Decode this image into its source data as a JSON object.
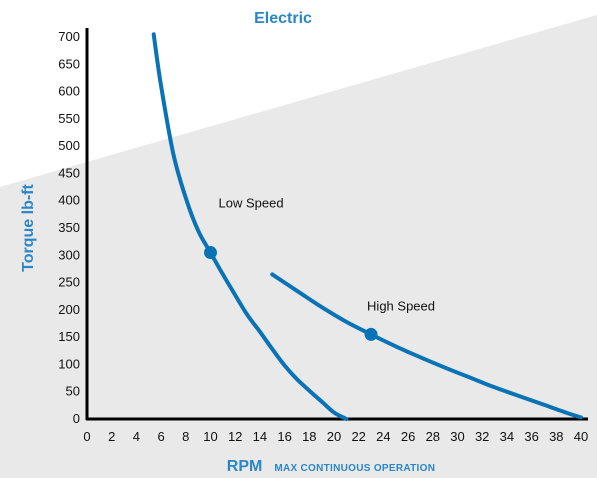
{
  "chart_data": {
    "type": "line",
    "title": "Electric",
    "xlabel": "RPM",
    "xlabel_note": "MAX CONTINUOUS OPERATION",
    "ylabel": "Torque lb-ft",
    "xlim": [
      0,
      40
    ],
    "ylim": [
      0,
      700
    ],
    "x_ticks": [
      "0",
      "2",
      "4",
      "6",
      "8",
      "10",
      "12",
      "14",
      "16",
      "18",
      "20",
      "22",
      "24",
      "26",
      "28",
      "30",
      "32",
      "34",
      "36",
      "38",
      "40"
    ],
    "y_ticks": [
      "0",
      "50",
      "100",
      "150",
      "200",
      "250",
      "300",
      "350",
      "400",
      "450",
      "500",
      "550",
      "600",
      "650",
      "700"
    ],
    "grid": false,
    "series": [
      {
        "name": "Low Speed",
        "x": [
          5.4,
          6.0,
          7.0,
          8.0,
          9.0,
          10.0,
          11.0,
          12.0,
          13.0,
          14.0,
          15.0,
          16.0,
          17.0,
          18.0,
          19.0,
          20.0,
          21.0
        ],
        "values": [
          705,
          610,
          485,
          405,
          345,
          305,
          265,
          227,
          190,
          160,
          128,
          98,
          73,
          52,
          32,
          12,
          0
        ],
        "marker": {
          "x": 10.0,
          "y": 305
        }
      },
      {
        "name": "High Speed",
        "x": [
          15.0,
          17.0,
          19.0,
          21.0,
          23.0,
          25.0,
          27.0,
          29.0,
          31.0,
          33.0,
          35.0,
          37.0,
          39.0,
          40.0
        ],
        "values": [
          265,
          235,
          205,
          178,
          155,
          133,
          113,
          94,
          76,
          58,
          42,
          26,
          10,
          3
        ],
        "marker": {
          "x": 23.0,
          "y": 155
        }
      }
    ]
  },
  "style": {
    "curve_color": "#0a73b5",
    "title_color": "#2a86c5",
    "band_color": "#e9e9ea",
    "axis_color": "#000000"
  }
}
